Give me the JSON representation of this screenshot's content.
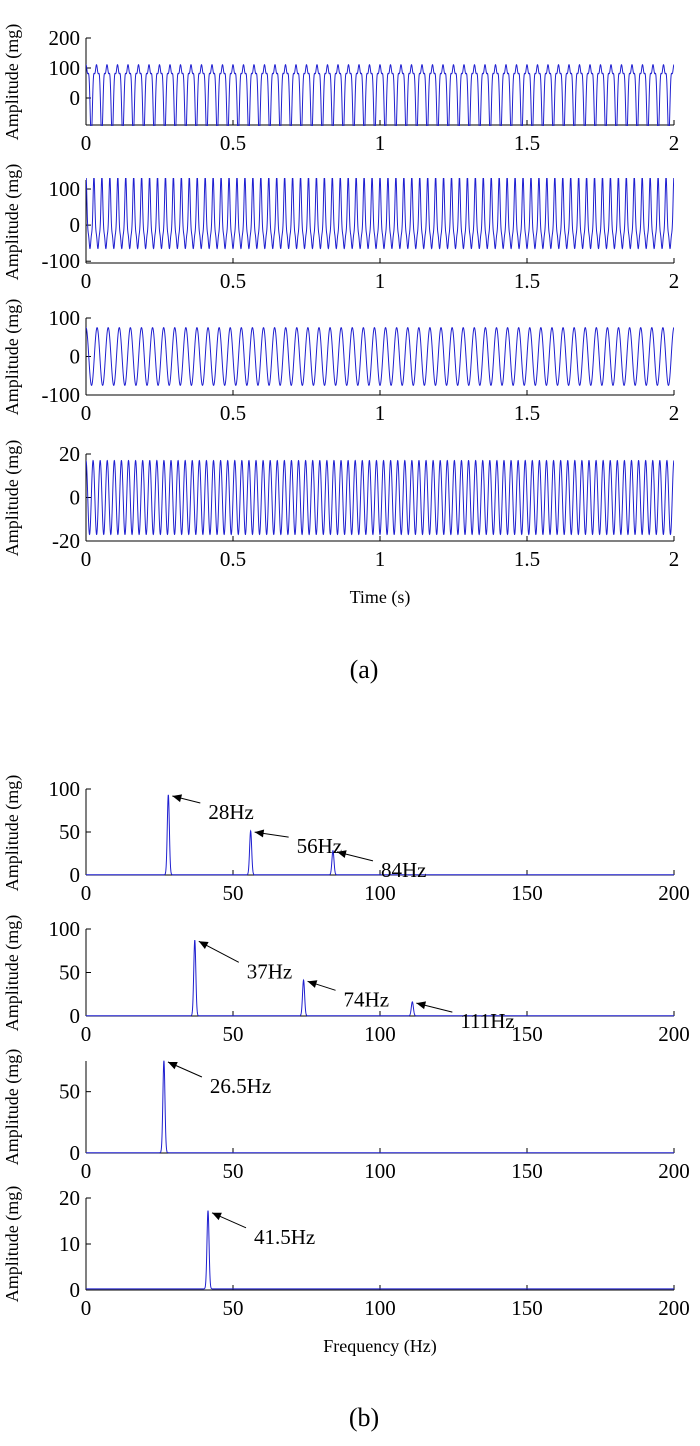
{
  "colors": {
    "series": "#1f1fd0",
    "axis": "#000000",
    "background": "#ffffff"
  },
  "captions": {
    "a": "(a)",
    "b": "(b)"
  },
  "chart_data": [
    {
      "type": "line",
      "panel": "a",
      "index": 1,
      "title": "",
      "xlabel": "",
      "ylabel": "Amplitude (mg)",
      "xlim": [
        0,
        2
      ],
      "ylim": [
        -90,
        200
      ],
      "xticks": [
        0,
        0.5,
        1,
        1.5,
        2
      ],
      "xtick_labels": [
        "0",
        "0.5",
        "1",
        "1.5",
        "2"
      ],
      "yticks": [
        0,
        100,
        200
      ],
      "ytick_labels": [
        "0",
        "100",
        "200"
      ],
      "signal": {
        "kind": "time",
        "components": [
          {
            "freq": 28,
            "amp": 95,
            "phase": 0
          },
          {
            "freq": 56,
            "amp": 45,
            "phase": 3.14
          },
          {
            "freq": 84,
            "amp": 25,
            "phase": 0
          }
        ],
        "offset": 36,
        "duration": 2
      }
    },
    {
      "type": "line",
      "panel": "a",
      "index": 2,
      "title": "",
      "xlabel": "",
      "ylabel": "Amplitude (mg)",
      "xlim": [
        0,
        2
      ],
      "ylim": [
        -105,
        125
      ],
      "xticks": [
        0,
        0.5,
        1,
        1.5,
        2
      ],
      "xtick_labels": [
        "0",
        "0.5",
        "1",
        "1.5",
        "2"
      ],
      "yticks": [
        -100,
        0,
        100
      ],
      "ytick_labels": [
        "-100",
        "0",
        "100"
      ],
      "signal": {
        "kind": "time",
        "components": [
          {
            "freq": 37,
            "amp": 85,
            "phase": 0
          },
          {
            "freq": 74,
            "amp": 25,
            "phase": 0
          },
          {
            "freq": 111,
            "amp": 15,
            "phase": 0
          }
        ],
        "offset": 10,
        "duration": 2
      }
    },
    {
      "type": "line",
      "panel": "a",
      "index": 3,
      "title": "",
      "xlabel": "",
      "ylabel": "Amplitude (mg)",
      "xlim": [
        0,
        2
      ],
      "ylim": [
        -100,
        100
      ],
      "xticks": [
        0,
        0.5,
        1,
        1.5,
        2
      ],
      "xtick_labels": [
        "0",
        "0.5",
        "1",
        "1.5",
        "2"
      ],
      "yticks": [
        -100,
        0,
        100
      ],
      "ytick_labels": [
        "-100",
        "0",
        "100"
      ],
      "signal": {
        "kind": "time",
        "components": [
          {
            "freq": 26.5,
            "amp": 75,
            "phase": 0
          }
        ],
        "offset": 0,
        "duration": 2
      }
    },
    {
      "type": "line",
      "panel": "a",
      "index": 4,
      "title": "",
      "xlabel": "Time (s)",
      "ylabel": "Amplitude (mg)",
      "xlim": [
        0,
        2
      ],
      "ylim": [
        -20,
        20
      ],
      "xticks": [
        0,
        0.5,
        1,
        1.5,
        2
      ],
      "xtick_labels": [
        "0",
        "0.5",
        "1",
        "1.5",
        "2"
      ],
      "yticks": [
        -20,
        0,
        20
      ],
      "ytick_labels": [
        "-20",
        "0",
        "20"
      ],
      "signal": {
        "kind": "time",
        "components": [
          {
            "freq": 41.5,
            "amp": 17,
            "phase": 0
          }
        ],
        "offset": 0,
        "duration": 2
      }
    },
    {
      "type": "line",
      "panel": "b",
      "index": 1,
      "title": "",
      "xlabel": "",
      "ylabel": "Amplitude (mg)",
      "xlim": [
        0,
        200
      ],
      "ylim": [
        0,
        100
      ],
      "xticks": [
        0,
        50,
        100,
        150,
        200
      ],
      "xtick_labels": [
        "0",
        "50",
        "100",
        "150",
        "200"
      ],
      "yticks": [
        0,
        50,
        100
      ],
      "ytick_labels": [
        "0",
        "50",
        "100"
      ],
      "peaks": [
        {
          "freq": 28,
          "amp": 93
        },
        {
          "freq": 56,
          "amp": 51
        },
        {
          "freq": 84,
          "amp": 28
        }
      ],
      "annotations": [
        {
          "text": "28Hz",
          "freq": 28,
          "amp": 93
        },
        {
          "text": "56Hz",
          "freq": 56,
          "amp": 51
        },
        {
          "text": "84Hz",
          "freq": 84,
          "amp": 28
        }
      ]
    },
    {
      "type": "line",
      "panel": "b",
      "index": 2,
      "title": "",
      "xlabel": "",
      "ylabel": "Amplitude (mg)",
      "xlim": [
        0,
        200
      ],
      "ylim": [
        0,
        100
      ],
      "xticks": [
        0,
        50,
        100,
        150,
        200
      ],
      "xtick_labels": [
        "0",
        "50",
        "100",
        "150",
        "200"
      ],
      "yticks": [
        0,
        50,
        100
      ],
      "ytick_labels": [
        "0",
        "50",
        "100"
      ],
      "peaks": [
        {
          "freq": 37,
          "amp": 87
        },
        {
          "freq": 74,
          "amp": 41
        },
        {
          "freq": 111,
          "amp": 16
        }
      ],
      "annotations": [
        {
          "text": "37Hz",
          "freq": 37,
          "amp": 87
        },
        {
          "text": "74Hz",
          "freq": 74,
          "amp": 41
        },
        {
          "text": "111Hz",
          "freq": 111,
          "amp": 16
        }
      ]
    },
    {
      "type": "line",
      "panel": "b",
      "index": 3,
      "title": "",
      "xlabel": "",
      "ylabel": "Amplitude (mg)",
      "xlim": [
        0,
        200
      ],
      "ylim": [
        0,
        75
      ],
      "xticks": [
        0,
        50,
        100,
        150,
        200
      ],
      "xtick_labels": [
        "0",
        "50",
        "100",
        "150",
        "200"
      ],
      "yticks": [
        0,
        50
      ],
      "ytick_labels": [
        "0",
        "50"
      ],
      "peaks": [
        {
          "freq": 26.5,
          "amp": 75
        }
      ],
      "annotations": [
        {
          "text": "26.5Hz",
          "freq": 26.5,
          "amp": 75
        }
      ]
    },
    {
      "type": "line",
      "panel": "b",
      "index": 4,
      "title": "",
      "xlabel": "Frequency (Hz)",
      "ylabel": "Amplitude (mg)",
      "xlim": [
        0,
        200
      ],
      "ylim": [
        0,
        20
      ],
      "xticks": [
        0,
        50,
        100,
        150,
        200
      ],
      "xtick_labels": [
        "0",
        "50",
        "100",
        "150",
        "200"
      ],
      "yticks": [
        0,
        10,
        20
      ],
      "ytick_labels": [
        "0",
        "10",
        "20"
      ],
      "peaks": [
        {
          "freq": 41.5,
          "amp": 17
        }
      ],
      "annotations": [
        {
          "text": "41.5Hz",
          "freq": 41.5,
          "amp": 17
        }
      ]
    }
  ]
}
